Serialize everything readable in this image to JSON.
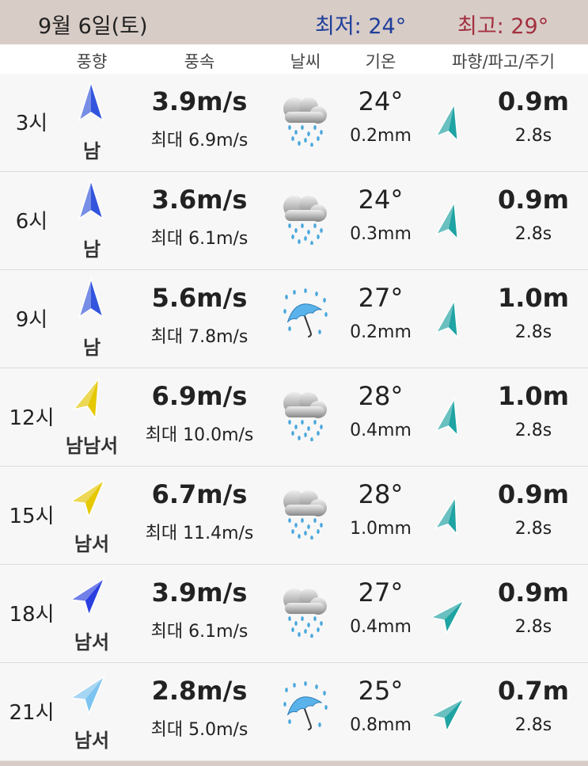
{
  "header": {
    "date": "9월 6일(토)",
    "min_temp": "최저: 24°",
    "max_temp": "최고: 29°",
    "min_color": "#1f3f9a",
    "max_color": "#a3303f"
  },
  "columns": {
    "wind_dir": "풍향",
    "wind_speed": "풍속",
    "weather": "날씨",
    "temp": "기온",
    "wave": "파향/파고/주기"
  },
  "rows": [
    {
      "time": "3시",
      "wind_dir": "남",
      "wind_arrow_deg": 0,
      "wind_color": "#3355dd",
      "speed": "3.9m/s",
      "gust": "최대 6.9m/s",
      "weather_icon": "cloud-rain-icon",
      "temp": "24°",
      "rain": "0.2mm",
      "wave_arrow_deg": 12,
      "wave": "0.9m",
      "period": "2.8s"
    },
    {
      "time": "6시",
      "wind_dir": "남",
      "wind_arrow_deg": 0,
      "wind_color": "#3355dd",
      "speed": "3.6m/s",
      "gust": "최대 6.1m/s",
      "weather_icon": "cloud-rain-icon",
      "temp": "24°",
      "rain": "0.3mm",
      "wave_arrow_deg": 12,
      "wave": "0.9m",
      "period": "2.8s"
    },
    {
      "time": "9시",
      "wind_dir": "남",
      "wind_arrow_deg": 0,
      "wind_color": "#3355dd",
      "speed": "5.6m/s",
      "gust": "최대 7.8m/s",
      "weather_icon": "umbrella-rain-icon",
      "temp": "27°",
      "rain": "0.2mm",
      "wave_arrow_deg": 12,
      "wave": "1.0m",
      "period": "2.8s"
    },
    {
      "time": "12시",
      "wind_dir": "남남서",
      "wind_arrow_deg": 22,
      "wind_color": "#e6c800",
      "speed": "6.9m/s",
      "gust": "최대 10.0m/s",
      "weather_icon": "cloud-rain-icon",
      "temp": "28°",
      "rain": "0.4mm",
      "wave_arrow_deg": 12,
      "wave": "1.0m",
      "period": "2.8s"
    },
    {
      "time": "15시",
      "wind_dir": "남서",
      "wind_arrow_deg": 40,
      "wind_color": "#e6c800",
      "speed": "6.7m/s",
      "gust": "최대 11.4m/s",
      "weather_icon": "cloud-rain-icon",
      "temp": "28°",
      "rain": "1.0mm",
      "wave_arrow_deg": 15,
      "wave": "0.9m",
      "period": "2.8s"
    },
    {
      "time": "18시",
      "wind_dir": "남서",
      "wind_arrow_deg": 40,
      "wind_color": "#2a3fe0",
      "speed": "3.9m/s",
      "gust": "최대 6.1m/s",
      "weather_icon": "cloud-rain-icon",
      "temp": "27°",
      "rain": "0.4mm",
      "wave_arrow_deg": 45,
      "wave": "0.9m",
      "period": "2.8s"
    },
    {
      "time": "21시",
      "wind_dir": "남서",
      "wind_arrow_deg": 40,
      "wind_color": "#7cc4ef",
      "speed": "2.8m/s",
      "gust": "최대 5.0m/s",
      "weather_icon": "umbrella-rain-icon",
      "temp": "25°",
      "rain": "0.8mm",
      "wave_arrow_deg": 45,
      "wave": "0.7m",
      "period": "2.8s"
    }
  ],
  "wave_color": "#1fa3a3"
}
